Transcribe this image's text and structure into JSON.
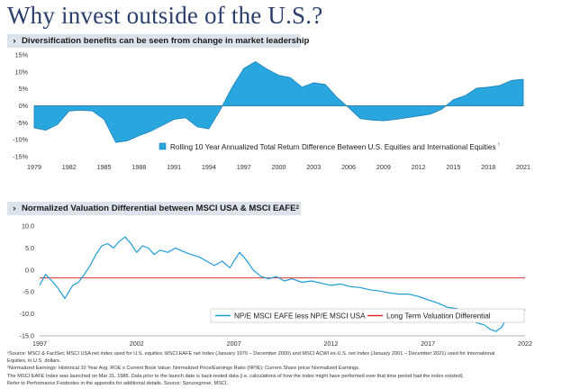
{
  "page": {
    "title": "Why invest outside of the U.S.?"
  },
  "colors": {
    "accent": "#1e9bd7",
    "fill": "#2aa6df",
    "reference_line": "#d9322b",
    "title": "#2a3f6b",
    "section_bar": "#dde3ea"
  },
  "chart_data": [
    {
      "type": "area",
      "section_chevron": "›",
      "title": "Diversification benefits can be seen from change in market leadership",
      "xlabel": "",
      "ylabel": "",
      "x_ticks": [
        "1979",
        "1982",
        "1985",
        "1988",
        "1991",
        "1994",
        "1997",
        "2000",
        "2003",
        "2006",
        "2009",
        "2012",
        "2015",
        "2018",
        "2021"
      ],
      "y_ticks": [
        "15%",
        "10%",
        "5%",
        "0%",
        "-5%",
        "-10%",
        "-15%"
      ],
      "xlim": [
        1979,
        2021
      ],
      "ylim": [
        -15,
        15
      ],
      "grid": false,
      "legend_position": "bottom-right",
      "series": [
        {
          "name": "Rolling 10 Year Annualized Total Return Difference Between U.S. Equities and International Equities",
          "legend_marker": "¹",
          "x": [
            1979,
            1980,
            1981,
            1982,
            1983,
            1984,
            1985,
            1986,
            1987,
            1988,
            1989,
            1990,
            1991,
            1992,
            1993,
            1994,
            1995,
            1996,
            1997,
            1998,
            1999,
            2000,
            2001,
            2002,
            2003,
            2004,
            2005,
            2006,
            2007,
            2008,
            2009,
            2010,
            2011,
            2012,
            2013,
            2014,
            2015,
            2016,
            2017,
            2018,
            2019,
            2020,
            2021
          ],
          "values": [
            -6.5,
            -7.2,
            -5.5,
            -1.5,
            -1.3,
            -1.5,
            -4.0,
            -10.8,
            -10.3,
            -8.8,
            -7.5,
            -5.8,
            -4.0,
            -3.5,
            -6.2,
            -6.8,
            -1.0,
            5.5,
            11.0,
            13.0,
            10.8,
            9.0,
            8.3,
            5.5,
            6.8,
            6.3,
            2.5,
            -0.5,
            -3.8,
            -4.2,
            -4.4,
            -4.0,
            -3.5,
            -3.0,
            -2.5,
            -1.0,
            1.8,
            3.0,
            5.2,
            5.5,
            6.0,
            7.5,
            7.8
          ]
        }
      ]
    },
    {
      "type": "line",
      "section_chevron": "›",
      "title": "Normalized Valuation Differential between MSCI USA & MSCI EAFE",
      "title_marker": "2",
      "xlabel": "",
      "ylabel": "",
      "x_ticks": [
        "1997",
        "2002",
        "2007",
        "2012",
        "2017",
        "2022"
      ],
      "y_ticks": [
        "10.0",
        "5.0",
        "0.0",
        "-5.0",
        "-10.0",
        "-15.0"
      ],
      "xlim": [
        1997,
        2022
      ],
      "ylim": [
        -15,
        10
      ],
      "grid": false,
      "legend_position": "bottom-right",
      "series": [
        {
          "name": "NP/E MSCI EAFE less NP/E MSCI USA",
          "x": [
            1997.0,
            1997.3,
            1997.7,
            1998.0,
            1998.3,
            1998.7,
            1999.0,
            1999.3,
            1999.6,
            1999.9,
            2000.2,
            2000.5,
            2000.8,
            2001.1,
            2001.4,
            2001.7,
            2002.0,
            2002.3,
            2002.6,
            2002.9,
            2003.2,
            2003.6,
            2004.0,
            2004.4,
            2004.8,
            2005.2,
            2005.6,
            2006.0,
            2006.4,
            2006.8,
            2007.0,
            2007.3,
            2007.6,
            2008.0,
            2008.4,
            2008.8,
            2009.2,
            2009.6,
            2010.0,
            2010.5,
            2011.0,
            2011.5,
            2012.0,
            2012.5,
            2013.0,
            2013.5,
            2014.0,
            2014.5,
            2015.0,
            2015.5,
            2016.0,
            2016.5,
            2017.0,
            2017.5,
            2018.0,
            2018.5,
            2018.9,
            2019.2,
            2019.5,
            2019.9,
            2020.2,
            2020.5,
            2020.8,
            2021.1,
            2021.4,
            2021.7,
            2022.0
          ],
          "values": [
            -3.5,
            -1.0,
            -2.8,
            -4.5,
            -6.5,
            -3.5,
            -2.8,
            -1.0,
            1.0,
            3.5,
            5.5,
            6.0,
            5.0,
            6.5,
            7.5,
            6.0,
            4.0,
            5.5,
            5.0,
            3.5,
            4.5,
            4.0,
            5.0,
            4.2,
            3.5,
            3.0,
            2.0,
            1.0,
            2.0,
            0.5,
            2.0,
            4.0,
            2.5,
            0.0,
            -1.5,
            -2.0,
            -1.5,
            -2.5,
            -2.0,
            -2.8,
            -2.5,
            -3.0,
            -3.5,
            -3.2,
            -3.8,
            -4.0,
            -4.5,
            -4.8,
            -5.2,
            -5.5,
            -5.5,
            -6.0,
            -6.8,
            -7.5,
            -8.5,
            -8.8,
            -10.0,
            -11.0,
            -12.0,
            -12.5,
            -13.5,
            -14.0,
            -13.0,
            -10.5,
            -9.5,
            -10.0,
            -9.0
          ]
        },
        {
          "name": "Long Term Valuation Differential",
          "x": [
            1997,
            2022
          ],
          "values": [
            -1.8,
            -1.8
          ]
        }
      ]
    }
  ],
  "footnotes": [
    "¹Source: MSCI & FactSet; MSCI USA net index used for U.S. equities; MSCI EAFE net Index (January 1970 – December 2000) and MSCI ACWI ex-U.S. net Index (January 2001 – December 2021) used for International",
    "Equities, in U.S. dollars.",
    "²Normalized Earnings: Historical 10 Year Avg. ROE x Current Book Value; Normalized Price/Earnings Ratio (NP/E): Current Share price/ Normalized Earnings.",
    "The MSCI EAFE Index was launched on Mar 31, 1986. Data prior to the launch date is back-tested data (i.e. calculations of how the index might have performed over that time period had the index existed).",
    "Refer to Performance Footnotes in the appendix for additional details. Source: Sprucegrove, MSCI."
  ]
}
